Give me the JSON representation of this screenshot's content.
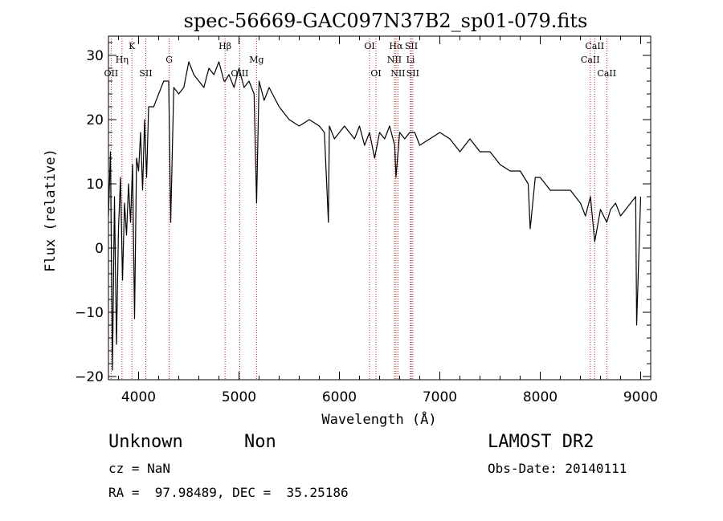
{
  "chart_data": {
    "type": "line",
    "title": "spec-56669-GAC097N37B2_sp01-079.fits",
    "xlabel": "Wavelength (Å)",
    "ylabel": "Flux (relative)",
    "xlim": [
      3700,
      9100
    ],
    "ylim": [
      -20.5,
      33
    ],
    "xticks": [
      4000,
      5000,
      6000,
      7000,
      8000,
      9000
    ],
    "yticks": [
      -20,
      -10,
      0,
      10,
      20,
      30
    ],
    "grid": false,
    "series": [
      {
        "x": [
          3700,
          3720,
          3740,
          3760,
          3780,
          3800,
          3820,
          3840,
          3860,
          3880,
          3900,
          3920,
          3940,
          3960,
          3980,
          4000,
          4020,
          4040,
          4060,
          4080,
          4100,
          4150,
          4200,
          4250,
          4300,
          4320,
          4350,
          4400,
          4450,
          4500,
          4550,
          4600,
          4650,
          4700,
          4750,
          4800,
          4850,
          4861,
          4900,
          4950,
          5000,
          5050,
          5100,
          5150,
          5175,
          5200,
          5250,
          5300,
          5400,
          5500,
          5600,
          5700,
          5800,
          5850,
          5890,
          5900,
          5950,
          6000,
          6050,
          6100,
          6150,
          6200,
          6250,
          6300,
          6350,
          6400,
          6450,
          6500,
          6550,
          6563,
          6600,
          6650,
          6700,
          6750,
          6800,
          6900,
          7000,
          7100,
          7200,
          7300,
          7400,
          7500,
          7600,
          7700,
          7800,
          7880,
          7900,
          7950,
          8000,
          8100,
          8200,
          8300,
          8400,
          8450,
          8500,
          8542,
          8600,
          8662,
          8700,
          8750,
          8800,
          8850,
          8900,
          8950,
          8960,
          9000
        ],
        "y": [
          5,
          15,
          -19,
          8,
          -15,
          3,
          11,
          -5,
          7,
          2,
          10,
          4,
          13,
          -11,
          14,
          12,
          18,
          9,
          20,
          11,
          22,
          22,
          24,
          26,
          26,
          4,
          25,
          24,
          25,
          29,
          27,
          26,
          25,
          28,
          27,
          29,
          26,
          26,
          27,
          25,
          28,
          25,
          26,
          24,
          7,
          26,
          23,
          25,
          22,
          20,
          19,
          20,
          19,
          18,
          4,
          19,
          17,
          18,
          19,
          18,
          17,
          19,
          16,
          18,
          14,
          18,
          17,
          19,
          16,
          11,
          18,
          17,
          18,
          18,
          16,
          17,
          18,
          17,
          15,
          17,
          15,
          15,
          13,
          12,
          12,
          10,
          3,
          11,
          11,
          9,
          9,
          9,
          7,
          5,
          8,
          1,
          6,
          4,
          6,
          7,
          5,
          6,
          7,
          8,
          -12,
          8
        ]
      }
    ],
    "lines": [
      {
        "label": "OII",
        "wave": 3727,
        "row": 3
      },
      {
        "label": "Hη",
        "wave": 3835,
        "row": 2
      },
      {
        "label": "K",
        "wave": 3934,
        "row": 1
      },
      {
        "label": "SII",
        "wave": 4072,
        "row": 3
      },
      {
        "label": "G",
        "wave": 4305,
        "row": 2
      },
      {
        "label": "Hβ",
        "wave": 4861,
        "row": 1
      },
      {
        "label": "OIII",
        "wave": 5007,
        "row": 3
      },
      {
        "label": "Mg",
        "wave": 5175,
        "row": 2
      },
      {
        "label": "OI",
        "wave": 6300,
        "row": 1
      },
      {
        "label": "OI",
        "wave": 6364,
        "row": 3
      },
      {
        "label": "NII",
        "wave": 6548,
        "row": 2
      },
      {
        "label": "Hα",
        "wave": 6563,
        "row": 1
      },
      {
        "label": "NII",
        "wave": 6583,
        "row": 3
      },
      {
        "label": "SII",
        "wave": 6716,
        "row": 1
      },
      {
        "label": "Li",
        "wave": 6708,
        "row": 2
      },
      {
        "label": "SII",
        "wave": 6731,
        "row": 3
      },
      {
        "label": "CaII",
        "wave": 8498,
        "row": 2
      },
      {
        "label": "CaII",
        "wave": 8542,
        "row": 1
      },
      {
        "label": "CaII",
        "wave": 8662,
        "row": 3
      }
    ]
  },
  "footer": {
    "class_text": "Unknown",
    "subclass_text": "Non",
    "survey_text": "LAMOST DR2",
    "cz_text": "cz = NaN",
    "obsdate_text": "Obs-Date: 20140111",
    "radec_text": "RA =  97.98489, DEC =  35.25186"
  },
  "colors": {
    "spectrum": "#000000",
    "marker_lines": "#b22222",
    "axes": "#000000"
  }
}
